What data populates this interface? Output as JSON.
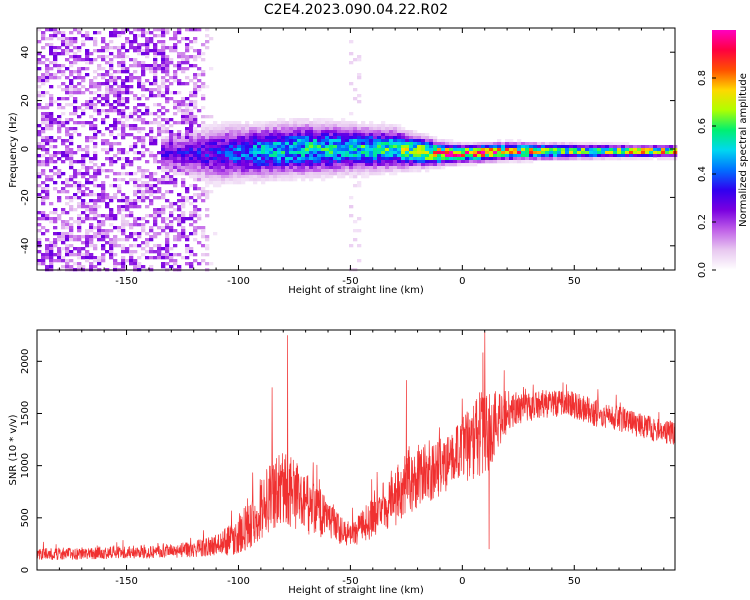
{
  "figure": {
    "title": "C2E4.2023.090.04.22.R02"
  },
  "chart_data": [
    {
      "type": "heatmap",
      "xlabel": "Height of straight line (km)",
      "ylabel": "Frequency (Hz)",
      "xlim": [
        -190,
        95
      ],
      "ylim": [
        -50,
        50
      ],
      "xticks": [
        -150,
        -100,
        -50,
        0,
        50
      ],
      "yticks": [
        -40,
        -20,
        0,
        20,
        40
      ],
      "grid": false,
      "colorbar": {
        "label": "Normalized spectral amplitude",
        "range": [
          0,
          1
        ],
        "ticks": [
          0.0,
          0.2,
          0.4,
          0.6,
          0.8
        ],
        "colormap": [
          "#ffffff",
          "#e8c8f0",
          "#c060e8",
          "#7a00e0",
          "#3000f0",
          "#0070ff",
          "#00d8f0",
          "#00f070",
          "#b0ff00",
          "#ffd800",
          "#ff5000",
          "#ff0040",
          "#ff00c0"
        ]
      },
      "ridge": {
        "x": [
          -130,
          -110,
          -90,
          -70,
          -50,
          -30,
          -10,
          0,
          20,
          50,
          80,
          95
        ],
        "center_hz": [
          -2,
          -2,
          -1,
          0,
          0,
          0,
          -2,
          -2,
          -1,
          -1,
          -1,
          -1
        ],
        "halfwidth_hz": [
          6,
          10,
          9,
          9,
          8,
          7,
          4,
          3,
          3,
          2.5,
          2,
          2
        ],
        "peak_amplitude": [
          0.3,
          0.35,
          0.5,
          0.55,
          0.55,
          0.6,
          0.85,
          0.95,
          0.85,
          0.65,
          0.8,
          0.8
        ]
      },
      "noise_region": {
        "x": [
          -190,
          -110
        ],
        "amplitude": [
          0.25,
          0.3
        ]
      }
    },
    {
      "type": "line",
      "xlabel": "Height of straight line (km)",
      "ylabel": "SNR (10 * v/v)",
      "xlim": [
        -190,
        95
      ],
      "ylim": [
        0,
        2300
      ],
      "xticks": [
        -150,
        -100,
        -50,
        0,
        50
      ],
      "yticks": [
        0,
        500,
        1000,
        1500,
        2000
      ],
      "grid": false,
      "series": [
        {
          "color": "#f03030",
          "x": [
            -190,
            -170,
            -150,
            -130,
            -120,
            -110,
            -100,
            -95,
            -90,
            -85,
            -80,
            -75,
            -70,
            -65,
            -60,
            -55,
            -50,
            -45,
            -40,
            -35,
            -30,
            -25,
            -20,
            -15,
            -10,
            -5,
            0,
            5,
            10,
            15,
            20,
            25,
            30,
            40,
            50,
            60,
            70,
            80,
            90,
            95
          ],
          "mean": [
            150,
            160,
            170,
            180,
            200,
            240,
            320,
            450,
            600,
            700,
            800,
            720,
            640,
            560,
            500,
            400,
            330,
            420,
            500,
            600,
            720,
            820,
            900,
            950,
            980,
            1050,
            1150,
            1250,
            1300,
            1400,
            1520,
            1550,
            1560,
            1600,
            1580,
            1500,
            1450,
            1380,
            1330,
            1300
          ],
          "spread": [
            60,
            60,
            60,
            70,
            80,
            100,
            180,
            250,
            300,
            330,
            350,
            330,
            300,
            250,
            200,
            150,
            120,
            160,
            200,
            250,
            300,
            320,
            300,
            300,
            280,
            260,
            300,
            400,
            450,
            300,
            200,
            150,
            140,
            130,
            130,
            130,
            120,
            120,
            120,
            120
          ],
          "peaks": [
            {
              "x": -78,
              "y": 2250
            },
            {
              "x": -85,
              "y": 1750
            },
            {
              "x": -25,
              "y": 1820
            },
            {
              "x": 10,
              "y": 2280
            },
            {
              "x": 12,
              "y": 200
            }
          ]
        }
      ]
    }
  ]
}
